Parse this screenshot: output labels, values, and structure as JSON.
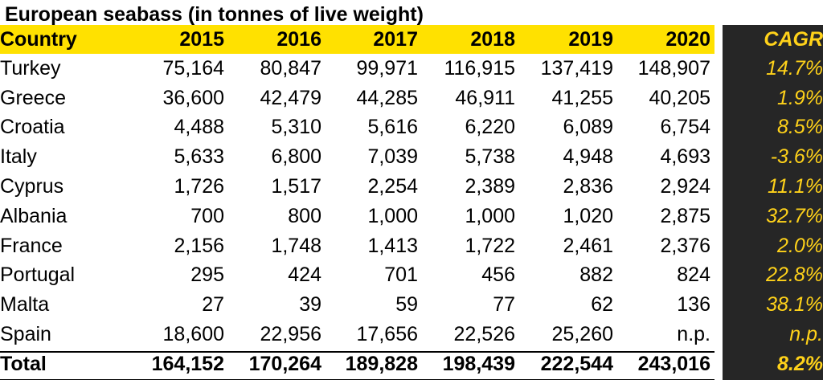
{
  "title": "European seabass (in tonnes of live weight)",
  "header": {
    "country": "Country",
    "years": [
      "2015",
      "2016",
      "2017",
      "2018",
      "2019",
      "2020"
    ],
    "cagr": "CAGR"
  },
  "rows": [
    {
      "country": "Turkey",
      "values": [
        "75,164",
        "80,847",
        "99,971",
        "116,915",
        "137,419",
        "148,907"
      ],
      "cagr": "14.7%"
    },
    {
      "country": "Greece",
      "values": [
        "36,600",
        "42,479",
        "44,285",
        "46,911",
        "41,255",
        "40,205"
      ],
      "cagr": "1.9%"
    },
    {
      "country": "Croatia",
      "values": [
        "4,488",
        "5,310",
        "5,616",
        "6,220",
        "6,089",
        "6,754"
      ],
      "cagr": "8.5%"
    },
    {
      "country": "Italy",
      "values": [
        "5,633",
        "6,800",
        "7,039",
        "5,738",
        "4,948",
        "4,693"
      ],
      "cagr": "-3.6%"
    },
    {
      "country": "Cyprus",
      "values": [
        "1,726",
        "1,517",
        "2,254",
        "2,389",
        "2,836",
        "2,924"
      ],
      "cagr": "11.1%"
    },
    {
      "country": "Albania",
      "values": [
        "700",
        "800",
        "1,000",
        "1,000",
        "1,020",
        "2,875"
      ],
      "cagr": "32.7%"
    },
    {
      "country": "France",
      "values": [
        "2,156",
        "1,748",
        "1,413",
        "1,722",
        "2,461",
        "2,376"
      ],
      "cagr": "2.0%"
    },
    {
      "country": "Portugal",
      "values": [
        "295",
        "424",
        "701",
        "456",
        "882",
        "824"
      ],
      "cagr": "22.8%"
    },
    {
      "country": "Malta",
      "values": [
        "27",
        "39",
        "59",
        "77",
        "62",
        "136"
      ],
      "cagr": "38.1%"
    },
    {
      "country": "Spain",
      "values": [
        "18,600",
        "22,956",
        "17,656",
        "22,526",
        "25,260",
        "n.p."
      ],
      "cagr": "n.p."
    }
  ],
  "total": {
    "country": "Total",
    "values": [
      "164,152",
      "170,264",
      "189,828",
      "198,439",
      "222,544",
      "243,016"
    ],
    "cagr": "8.2%"
  },
  "colors": {
    "header_band": "#ffe100",
    "cagr_background": "#262626",
    "cagr_text": "#ffd21a"
  }
}
